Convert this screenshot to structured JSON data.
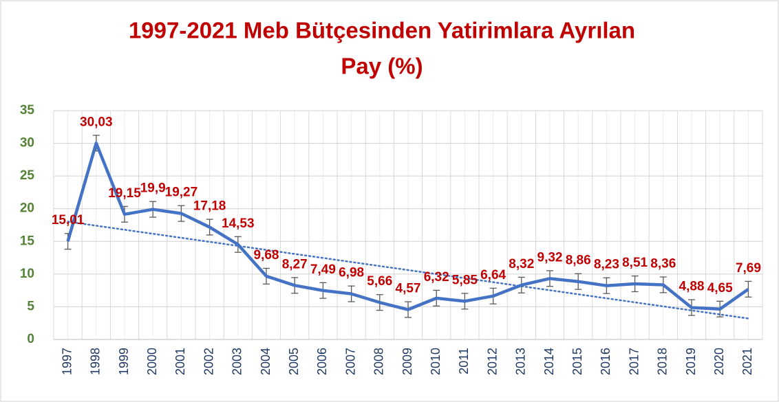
{
  "chart_data": {
    "type": "line",
    "title": [
      "1997-2021 Meb Bütçesinden Yatirimlara Ayrılan",
      "Pay (%)"
    ],
    "categories": [
      "1997",
      "1998",
      "1999",
      "2000",
      "2001",
      "2002",
      "2003",
      "2004",
      "2005",
      "2006",
      "2007",
      "2008",
      "2009",
      "2010",
      "2011",
      "2012",
      "2013",
      "2014",
      "2015",
      "2016",
      "2017",
      "2018",
      "2019",
      "2020",
      "2021"
    ],
    "series": [
      {
        "color": "#4472c4",
        "values": [
          15.01,
          30.03,
          19.15,
          19.9,
          19.27,
          17.18,
          14.53,
          9.68,
          8.27,
          7.49,
          6.98,
          5.66,
          4.57,
          6.32,
          5.85,
          6.64,
          8.32,
          9.32,
          8.86,
          8.23,
          8.51,
          8.36,
          4.88,
          4.65,
          7.69
        ],
        "value_labels": [
          "15,01",
          "30,03",
          "19,15",
          "19,9",
          "19,27",
          "17,18",
          "14,53",
          "9,68",
          "8,27",
          "7,49",
          "6,98",
          "5,66",
          "4,57",
          "6,32",
          "5,85",
          "6,64",
          "8,32",
          "9,32",
          "8,86",
          "8,23",
          "8,51",
          "8,36",
          "4,88",
          "4,65",
          "7,69"
        ],
        "errors": [
          1.2,
          1.2,
          1.2,
          1.2,
          1.2,
          1.2,
          1.2,
          1.2,
          1.2,
          1.2,
          1.2,
          1.2,
          1.2,
          1.2,
          1.2,
          1.2,
          1.2,
          1.2,
          1.2,
          1.2,
          1.2,
          1.2,
          1.2,
          1.2,
          1.2
        ]
      }
    ],
    "trendline": "linear",
    "ylim": [
      0,
      35
    ],
    "yticks": [
      0,
      5,
      10,
      15,
      20,
      25,
      30,
      35
    ],
    "grid": true
  }
}
